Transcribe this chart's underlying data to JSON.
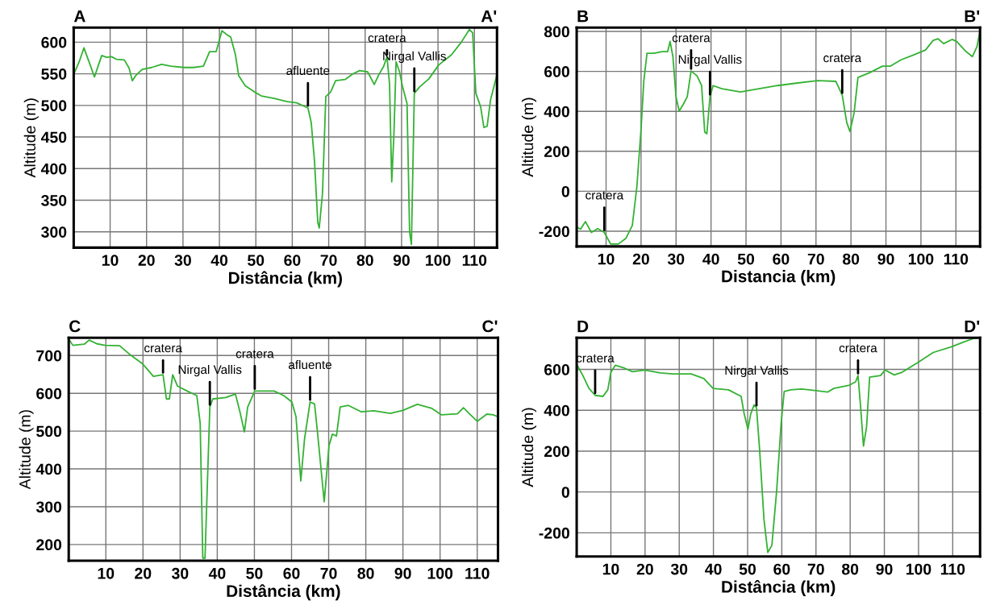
{
  "chart_data": [
    {
      "type": "line",
      "xlabel": "Distância (km)",
      "ylabel": "Altitude (m)",
      "xlim": [
        0,
        116.2
      ],
      "ylim": [
        275,
        623
      ],
      "xticks": [
        10,
        20,
        30,
        40,
        50,
        60,
        70,
        80,
        90,
        100,
        110
      ],
      "yticks": [
        300,
        350,
        400,
        450,
        500,
        550,
        600
      ],
      "grid": true,
      "annotations": [
        "A",
        "A'",
        {
          "text": "afluente",
          "x": 64.3,
          "y": 496
        },
        {
          "text": "cratera",
          "x": 86.0,
          "y": 577
        },
        {
          "text": "Nirgal Vallis",
          "x": 93.5,
          "y": 519
        }
      ],
      "series": [
        {
          "color": "#33b233",
          "x": [
            0,
            1.5,
            2.8,
            4.2,
            5.7,
            6.8,
            7.7,
            9.0,
            10.4,
            11.7,
            13.9,
            15.2,
            16.1,
            17.0,
            18.8,
            21.4,
            24.1,
            26.7,
            30.3,
            32.9,
            35.6,
            37.3,
            39.1,
            40.7,
            41.8,
            43.1,
            44.4,
            45.3,
            47.1,
            49.7,
            51.5,
            55.0,
            58.6,
            61.2,
            64.3,
            65.2,
            66.1,
            67.0,
            67.4,
            68.3,
            69.2,
            70.5,
            71.9,
            74.5,
            76.7,
            78.5,
            80.7,
            82.5,
            83.8,
            85.1,
            86.0,
            86.7,
            87.3,
            87.9,
            88.5,
            89.4,
            90.3,
            91.5,
            92.2,
            92.7,
            93.5,
            94.9,
            97.5,
            100.2,
            103.7,
            106.4,
            108.6,
            109.5,
            110.4,
            111.7,
            112.6,
            113.5,
            114.4,
            116.2
          ],
          "values": [
            549,
            569,
            591,
            569,
            545,
            564,
            579,
            576,
            577,
            573,
            572,
            559,
            539,
            547,
            557,
            560,
            565,
            562,
            560,
            560,
            562,
            585,
            585,
            618,
            613,
            608,
            580,
            547,
            531,
            521,
            515,
            511,
            506,
            504,
            496,
            473,
            412,
            315,
            306,
            361,
            514,
            521,
            539,
            541,
            550,
            555,
            553,
            533,
            549,
            562,
            577,
            534,
            379,
            453,
            569,
            554,
            529,
            503,
            300,
            280,
            519,
            529,
            542,
            564,
            580,
            600,
            620,
            615,
            519,
            498,
            465,
            467,
            508,
            549
          ]
        }
      ]
    },
    {
      "type": "line",
      "xlabel": "Distancia (km)",
      "ylabel": "Altitude (m)",
      "xlim": [
        1.6,
        116.9
      ],
      "ylim": [
        -276,
        819
      ],
      "xticks": [
        10,
        20,
        30,
        40,
        50,
        60,
        70,
        80,
        90,
        100,
        110
      ],
      "yticks": [
        -200,
        0,
        200,
        400,
        600,
        800
      ],
      "grid": true,
      "annotations": [
        "B",
        "B'",
        {
          "text": "cratera",
          "x": 9.5,
          "y": -206
        },
        {
          "text": "cratera",
          "x": 34.3,
          "y": 602
        },
        {
          "text": "Nirgal Vallis",
          "x": 39.7,
          "y": 473
        },
        {
          "text": "cratera",
          "x": 77.5,
          "y": 481
        }
      ],
      "series": [
        {
          "color": "#33b233",
          "x": [
            1.6,
            2.7,
            4.1,
            5.8,
            7.6,
            9.5,
            11.3,
            13.5,
            15.7,
            17.5,
            18.8,
            20.0,
            20.8,
            21.7,
            23.7,
            25.9,
            27.6,
            28.3,
            29.1,
            30.0,
            30.9,
            32.0,
            33.2,
            34.3,
            36.0,
            37.3,
            38.2,
            38.8,
            39.7,
            40.6,
            43.1,
            48.4,
            53.7,
            59.0,
            64.3,
            70.4,
            75.7,
            77.5,
            78.8,
            79.7,
            80.9,
            82.0,
            85.4,
            89.0,
            91.2,
            94.3,
            97.8,
            101.3,
            103.5,
            104.9,
            106.5,
            108.9,
            110.2,
            112.9,
            114.7,
            116.0,
            116.9
          ],
          "values": [
            -179,
            -190,
            -152,
            -206,
            -187,
            -206,
            -264,
            -264,
            -235,
            -171,
            22,
            312,
            554,
            691,
            691,
            699,
            699,
            750,
            674,
            473,
            401,
            433,
            473,
            602,
            578,
            529,
            296,
            288,
            473,
            529,
            513,
            497,
            513,
            529,
            541,
            554,
            550,
            481,
            344,
            299,
            393,
            570,
            594,
            626,
            626,
            658,
            682,
            707,
            755,
            763,
            739,
            760,
            750,
            699,
            674,
            723,
            803
          ]
        }
      ]
    },
    {
      "type": "line",
      "xlabel": "Distância (km)",
      "ylabel": "Altitude (m)",
      "xlim": [
        0,
        115.6
      ],
      "ylim": [
        157,
        747
      ],
      "xticks": [
        10,
        20,
        30,
        40,
        50,
        60,
        70,
        80,
        90,
        100,
        110
      ],
      "yticks": [
        200,
        300,
        400,
        500,
        600,
        700
      ],
      "grid": true,
      "annotations": [
        "C",
        "C'",
        {
          "text": "cratera",
          "x": 25.4,
          "y": 649
        },
        {
          "text": "Nirgal Vallis",
          "x": 38.0,
          "y": 564
        },
        {
          "text": "cratera",
          "x": 50.1,
          "y": 606
        },
        {
          "text": "afluente",
          "x": 65.0,
          "y": 577
        }
      ],
      "series": [
        {
          "color": "#33b233",
          "x": [
            0,
            1.1,
            4.2,
            5.5,
            7.6,
            9.8,
            13.7,
            16.3,
            19.8,
            22.8,
            25.4,
            26.3,
            27.1,
            28.0,
            29.3,
            31.9,
            34.5,
            35.4,
            36.1,
            36.7,
            38.0,
            38.8,
            42.3,
            44.9,
            46.2,
            47.3,
            48.2,
            50.1,
            55.3,
            57.9,
            60.1,
            61.2,
            62.5,
            63.5,
            65.0,
            66.2,
            67.0,
            68.8,
            70.1,
            71.0,
            72.1,
            73.1,
            75.3,
            78.8,
            82.2,
            86.6,
            90.0,
            93.9,
            97.8,
            100.4,
            104.7,
            106.3,
            107.8,
            110.0,
            112.6,
            114.3,
            115.6
          ],
          "values": [
            744,
            727,
            730,
            741,
            731,
            727,
            726,
            704,
            679,
            645,
            649,
            585,
            585,
            649,
            619,
            606,
            594,
            521,
            164,
            164,
            564,
            585,
            589,
            598,
            547,
            498,
            564,
            606,
            606,
            594,
            577,
            538,
            368,
            479,
            577,
            572,
            496,
            313,
            462,
            492,
            487,
            564,
            568,
            551,
            554,
            547,
            555,
            571,
            560,
            543,
            546,
            562,
            547,
            526,
            545,
            543,
            538
          ]
        }
      ]
    },
    {
      "type": "line",
      "xlabel": "Distância (km)",
      "ylabel": "Altitude (m)",
      "xlim": [
        0,
        118
      ],
      "ylim": [
        -316,
        755
      ],
      "xticks": [
        10,
        20,
        30,
        40,
        50,
        60,
        70,
        80,
        90,
        100,
        110
      ],
      "yticks": [
        -200,
        0,
        200,
        400,
        600
      ],
      "grid": true,
      "annotations": [
        "D",
        "D'",
        {
          "text": "cratera",
          "x": 5.4,
          "y": 473
        },
        {
          "text": "Nirgal Vallis",
          "x": 52.6,
          "y": 413
        },
        {
          "text": "cratera",
          "x": 82.3,
          "y": 570
        }
      ],
      "series": [
        {
          "color": "#33b233",
          "x": [
            0,
            1.8,
            3.6,
            5.4,
            7.7,
            9.1,
            10.0,
            11.3,
            13.6,
            16.3,
            19.9,
            24.5,
            28.1,
            33.5,
            37.2,
            39.9,
            44.4,
            48.1,
            49.0,
            50.1,
            50.9,
            51.9,
            52.6,
            53.5,
            54.8,
            55.9,
            57.1,
            58.5,
            59.8,
            60.7,
            62.6,
            65.7,
            68.0,
            73.4,
            75.2,
            79.8,
            81.6,
            82.3,
            83.0,
            83.9,
            84.8,
            85.7,
            88.9,
            90.2,
            92.9,
            95.2,
            99.7,
            104.3,
            109.7,
            113.3,
            116.0,
            118.0
          ],
          "values": [
            625,
            570,
            507,
            473,
            468,
            500,
            586,
            620,
            609,
            589,
            597,
            583,
            578,
            578,
            555,
            507,
            500,
            468,
            382,
            307,
            382,
            426,
            413,
            209,
            -136,
            -296,
            -261,
            6,
            335,
            492,
            500,
            504,
            500,
            489,
            507,
            523,
            539,
            570,
            429,
            225,
            319,
            562,
            570,
            597,
            573,
            586,
            633,
            683,
            711,
            735,
            751,
            755
          ]
        }
      ]
    }
  ]
}
